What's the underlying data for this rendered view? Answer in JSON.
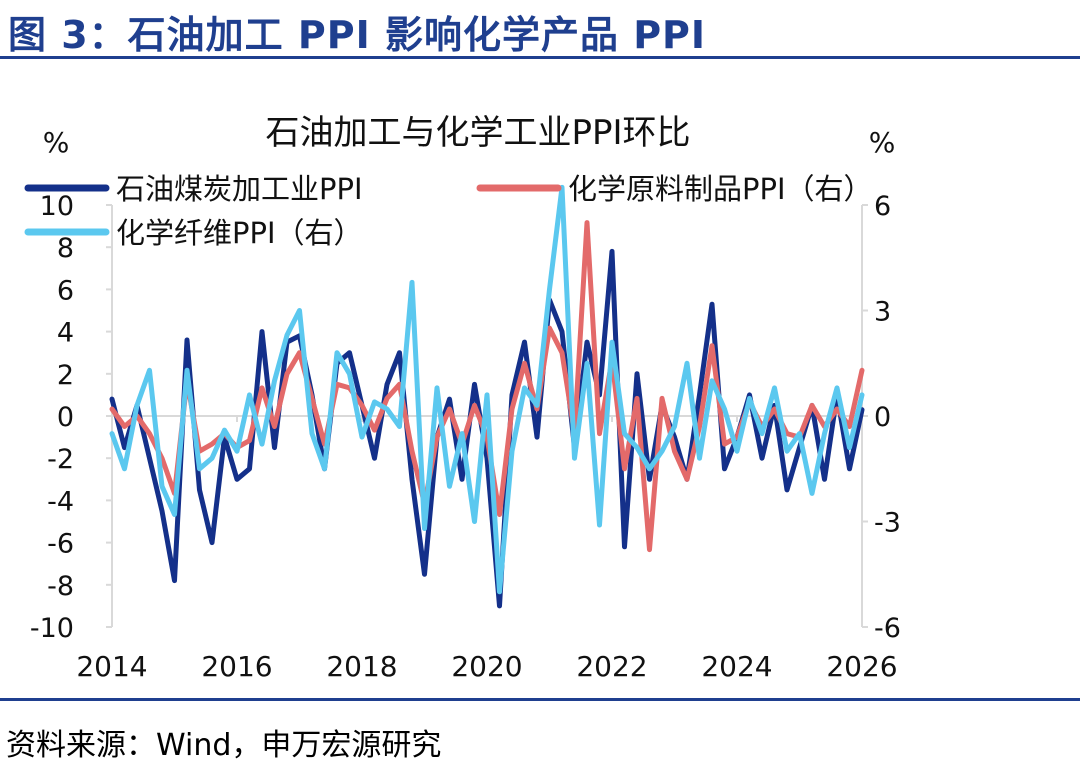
{
  "figure": {
    "title": "图 3：石油加工 PPI 影响化学产品 PPI",
    "source": "资料来源：Wind，申万宏源研究"
  },
  "chart_data": {
    "type": "line",
    "title": "石油加工与化学工业PPI环比",
    "left_unit": "%",
    "right_unit": "%",
    "x_ticks": [
      "2014",
      "2016",
      "2018",
      "2020",
      "2022",
      "2024",
      "2026"
    ],
    "x_range": [
      2014,
      2026
    ],
    "y_left": {
      "range": [
        -10,
        10
      ],
      "ticks": [
        "10",
        "8",
        "6",
        "4",
        "2",
        "0",
        "-2",
        "-4",
        "-6",
        "-8",
        "-10"
      ]
    },
    "y_right": {
      "range": [
        -6,
        6
      ],
      "ticks": [
        "6",
        "3",
        "0",
        "-3",
        "-6"
      ]
    },
    "legend_placement": "top",
    "grid": false,
    "series": [
      {
        "name": "石油煤炭加工业PPI",
        "axis": "left",
        "color": "#14308a",
        "x": [
          2014.0,
          2014.2,
          2014.4,
          2014.6,
          2014.8,
          2015.0,
          2015.2,
          2015.4,
          2015.6,
          2015.8,
          2016.0,
          2016.2,
          2016.4,
          2016.6,
          2016.8,
          2017.0,
          2017.2,
          2017.4,
          2017.6,
          2017.8,
          2018.0,
          2018.2,
          2018.4,
          2018.6,
          2018.8,
          2019.0,
          2019.2,
          2019.4,
          2019.6,
          2019.8,
          2020.0,
          2020.2,
          2020.4,
          2020.6,
          2020.8,
          2021.0,
          2021.2,
          2021.4,
          2021.6,
          2021.8,
          2022.0,
          2022.2,
          2022.4,
          2022.6,
          2022.8,
          2023.0,
          2023.2,
          2023.4,
          2023.6,
          2023.8,
          2024.0,
          2024.2,
          2024.4,
          2024.6,
          2024.8,
          2025.0,
          2025.2,
          2025.4,
          2025.6,
          2025.8,
          2026.0
        ],
        "values": [
          0.8,
          -1.5,
          0.5,
          -2.0,
          -4.5,
          -7.8,
          3.6,
          -3.5,
          -6.0,
          -1.0,
          -3.0,
          -2.5,
          4.0,
          -1.5,
          3.5,
          3.8,
          1.0,
          -2.5,
          2.5,
          3.0,
          0.5,
          -2.0,
          1.5,
          3.0,
          -3.0,
          -7.5,
          -1.0,
          0.8,
          -3.0,
          1.5,
          -2.0,
          -9.0,
          1.0,
          3.5,
          -1.0,
          5.5,
          4.0,
          -1.5,
          3.5,
          1.0,
          7.8,
          -6.2,
          2.0,
          -3.0,
          0.5,
          -1.0,
          -3.0,
          1.0,
          5.3,
          -2.5,
          -1.0,
          1.0,
          -2.0,
          0.5,
          -3.5,
          -1.5,
          0.5,
          -3.0,
          1.0,
          -2.5,
          0.3
        ]
      },
      {
        "name": "化学原料制品PPI（右）",
        "axis": "right",
        "color": "#e36a6a",
        "x": [
          2014.0,
          2014.2,
          2014.4,
          2014.6,
          2014.8,
          2015.0,
          2015.2,
          2015.4,
          2015.6,
          2015.8,
          2016.0,
          2016.2,
          2016.4,
          2016.6,
          2016.8,
          2017.0,
          2017.2,
          2017.4,
          2017.6,
          2017.8,
          2018.0,
          2018.2,
          2018.4,
          2018.6,
          2018.8,
          2019.0,
          2019.2,
          2019.4,
          2019.6,
          2019.8,
          2020.0,
          2020.2,
          2020.4,
          2020.6,
          2020.8,
          2021.0,
          2021.2,
          2021.4,
          2021.6,
          2021.8,
          2022.0,
          2022.2,
          2022.4,
          2022.6,
          2022.8,
          2023.0,
          2023.2,
          2023.4,
          2023.6,
          2023.8,
          2024.0,
          2024.2,
          2024.4,
          2024.6,
          2024.8,
          2025.0,
          2025.2,
          2025.4,
          2025.6,
          2025.8,
          2026.0
        ],
        "values": [
          0.2,
          -0.3,
          0.0,
          -0.5,
          -1.2,
          -2.2,
          1.0,
          -1.0,
          -0.8,
          -0.5,
          -0.9,
          -0.7,
          0.8,
          -0.3,
          1.2,
          1.8,
          0.5,
          -0.8,
          0.9,
          0.8,
          0.3,
          -0.4,
          0.5,
          0.9,
          -1.0,
          -2.5,
          -0.6,
          0.2,
          -0.8,
          0.3,
          -0.6,
          -2.8,
          0.2,
          1.5,
          0.2,
          2.5,
          1.8,
          -0.5,
          5.5,
          -0.5,
          1.6,
          -1.5,
          0.5,
          -3.8,
          0.5,
          -1.0,
          -1.8,
          -0.3,
          2.0,
          -0.8,
          -0.6,
          0.4,
          -0.3,
          0.2,
          -0.5,
          -0.6,
          0.3,
          -0.3,
          0.2,
          -0.3,
          1.3
        ]
      },
      {
        "name": "化学纤维PPI（右）",
        "axis": "right",
        "color": "#5bc8ef",
        "x": [
          2014.0,
          2014.2,
          2014.4,
          2014.6,
          2014.8,
          2015.0,
          2015.2,
          2015.4,
          2015.6,
          2015.8,
          2016.0,
          2016.2,
          2016.4,
          2016.6,
          2016.8,
          2017.0,
          2017.2,
          2017.4,
          2017.6,
          2017.8,
          2018.0,
          2018.2,
          2018.4,
          2018.6,
          2018.8,
          2019.0,
          2019.2,
          2019.4,
          2019.6,
          2019.8,
          2020.0,
          2020.2,
          2020.4,
          2020.6,
          2020.8,
          2021.0,
          2021.2,
          2021.4,
          2021.6,
          2021.8,
          2022.0,
          2022.2,
          2022.4,
          2022.6,
          2022.8,
          2023.0,
          2023.2,
          2023.4,
          2023.6,
          2023.8,
          2024.0,
          2024.2,
          2024.4,
          2024.6,
          2024.8,
          2025.0,
          2025.2,
          2025.4,
          2025.6,
          2025.8,
          2026.0
        ],
        "values": [
          -0.5,
          -1.5,
          0.3,
          1.3,
          -2.0,
          -2.8,
          1.3,
          -1.5,
          -1.2,
          -0.4,
          -1.0,
          0.6,
          -0.8,
          1.0,
          2.3,
          3.0,
          -0.5,
          -1.5,
          1.8,
          1.2,
          -0.6,
          0.4,
          0.2,
          -0.3,
          3.8,
          -3.2,
          0.8,
          -2.0,
          -0.5,
          -3.0,
          0.6,
          -5.0,
          -1.0,
          0.8,
          0.3,
          3.6,
          6.5,
          -1.2,
          1.5,
          -3.1,
          2.1,
          -0.5,
          -0.9,
          -1.5,
          -1.0,
          -0.3,
          1.5,
          -1.2,
          1.0,
          0.2,
          -1.0,
          0.5,
          -0.5,
          0.8,
          -1.0,
          -0.5,
          -2.2,
          -0.5,
          0.8,
          -0.9,
          0.6
        ]
      }
    ]
  }
}
